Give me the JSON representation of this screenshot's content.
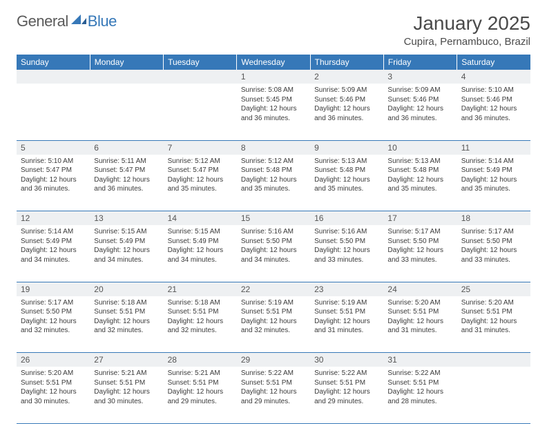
{
  "brand": {
    "part1": "General",
    "part2": "Blue"
  },
  "title": "January 2025",
  "location": "Cupira, Pernambuco, Brazil",
  "colors": {
    "accent": "#3678b8",
    "header_text": "#ffffff",
    "daynum_bg": "#eef0f2",
    "body_text": "#3a3a3a"
  },
  "typography": {
    "title_size": 28,
    "location_size": 15,
    "th_size": 12,
    "cell_size": 10
  },
  "days_of_week": [
    "Sunday",
    "Monday",
    "Tuesday",
    "Wednesday",
    "Thursday",
    "Friday",
    "Saturday"
  ],
  "weeks": [
    [
      null,
      null,
      null,
      {
        "n": "1",
        "sunrise": "Sunrise: 5:08 AM",
        "sunset": "Sunset: 5:45 PM",
        "daylight": "Daylight: 12 hours and 36 minutes."
      },
      {
        "n": "2",
        "sunrise": "Sunrise: 5:09 AM",
        "sunset": "Sunset: 5:46 PM",
        "daylight": "Daylight: 12 hours and 36 minutes."
      },
      {
        "n": "3",
        "sunrise": "Sunrise: 5:09 AM",
        "sunset": "Sunset: 5:46 PM",
        "daylight": "Daylight: 12 hours and 36 minutes."
      },
      {
        "n": "4",
        "sunrise": "Sunrise: 5:10 AM",
        "sunset": "Sunset: 5:46 PM",
        "daylight": "Daylight: 12 hours and 36 minutes."
      }
    ],
    [
      {
        "n": "5",
        "sunrise": "Sunrise: 5:10 AM",
        "sunset": "Sunset: 5:47 PM",
        "daylight": "Daylight: 12 hours and 36 minutes."
      },
      {
        "n": "6",
        "sunrise": "Sunrise: 5:11 AM",
        "sunset": "Sunset: 5:47 PM",
        "daylight": "Daylight: 12 hours and 36 minutes."
      },
      {
        "n": "7",
        "sunrise": "Sunrise: 5:12 AM",
        "sunset": "Sunset: 5:47 PM",
        "daylight": "Daylight: 12 hours and 35 minutes."
      },
      {
        "n": "8",
        "sunrise": "Sunrise: 5:12 AM",
        "sunset": "Sunset: 5:48 PM",
        "daylight": "Daylight: 12 hours and 35 minutes."
      },
      {
        "n": "9",
        "sunrise": "Sunrise: 5:13 AM",
        "sunset": "Sunset: 5:48 PM",
        "daylight": "Daylight: 12 hours and 35 minutes."
      },
      {
        "n": "10",
        "sunrise": "Sunrise: 5:13 AM",
        "sunset": "Sunset: 5:48 PM",
        "daylight": "Daylight: 12 hours and 35 minutes."
      },
      {
        "n": "11",
        "sunrise": "Sunrise: 5:14 AM",
        "sunset": "Sunset: 5:49 PM",
        "daylight": "Daylight: 12 hours and 35 minutes."
      }
    ],
    [
      {
        "n": "12",
        "sunrise": "Sunrise: 5:14 AM",
        "sunset": "Sunset: 5:49 PM",
        "daylight": "Daylight: 12 hours and 34 minutes."
      },
      {
        "n": "13",
        "sunrise": "Sunrise: 5:15 AM",
        "sunset": "Sunset: 5:49 PM",
        "daylight": "Daylight: 12 hours and 34 minutes."
      },
      {
        "n": "14",
        "sunrise": "Sunrise: 5:15 AM",
        "sunset": "Sunset: 5:49 PM",
        "daylight": "Daylight: 12 hours and 34 minutes."
      },
      {
        "n": "15",
        "sunrise": "Sunrise: 5:16 AM",
        "sunset": "Sunset: 5:50 PM",
        "daylight": "Daylight: 12 hours and 34 minutes."
      },
      {
        "n": "16",
        "sunrise": "Sunrise: 5:16 AM",
        "sunset": "Sunset: 5:50 PM",
        "daylight": "Daylight: 12 hours and 33 minutes."
      },
      {
        "n": "17",
        "sunrise": "Sunrise: 5:17 AM",
        "sunset": "Sunset: 5:50 PM",
        "daylight": "Daylight: 12 hours and 33 minutes."
      },
      {
        "n": "18",
        "sunrise": "Sunrise: 5:17 AM",
        "sunset": "Sunset: 5:50 PM",
        "daylight": "Daylight: 12 hours and 33 minutes."
      }
    ],
    [
      {
        "n": "19",
        "sunrise": "Sunrise: 5:17 AM",
        "sunset": "Sunset: 5:50 PM",
        "daylight": "Daylight: 12 hours and 32 minutes."
      },
      {
        "n": "20",
        "sunrise": "Sunrise: 5:18 AM",
        "sunset": "Sunset: 5:51 PM",
        "daylight": "Daylight: 12 hours and 32 minutes."
      },
      {
        "n": "21",
        "sunrise": "Sunrise: 5:18 AM",
        "sunset": "Sunset: 5:51 PM",
        "daylight": "Daylight: 12 hours and 32 minutes."
      },
      {
        "n": "22",
        "sunrise": "Sunrise: 5:19 AM",
        "sunset": "Sunset: 5:51 PM",
        "daylight": "Daylight: 12 hours and 32 minutes."
      },
      {
        "n": "23",
        "sunrise": "Sunrise: 5:19 AM",
        "sunset": "Sunset: 5:51 PM",
        "daylight": "Daylight: 12 hours and 31 minutes."
      },
      {
        "n": "24",
        "sunrise": "Sunrise: 5:20 AM",
        "sunset": "Sunset: 5:51 PM",
        "daylight": "Daylight: 12 hours and 31 minutes."
      },
      {
        "n": "25",
        "sunrise": "Sunrise: 5:20 AM",
        "sunset": "Sunset: 5:51 PM",
        "daylight": "Daylight: 12 hours and 31 minutes."
      }
    ],
    [
      {
        "n": "26",
        "sunrise": "Sunrise: 5:20 AM",
        "sunset": "Sunset: 5:51 PM",
        "daylight": "Daylight: 12 hours and 30 minutes."
      },
      {
        "n": "27",
        "sunrise": "Sunrise: 5:21 AM",
        "sunset": "Sunset: 5:51 PM",
        "daylight": "Daylight: 12 hours and 30 minutes."
      },
      {
        "n": "28",
        "sunrise": "Sunrise: 5:21 AM",
        "sunset": "Sunset: 5:51 PM",
        "daylight": "Daylight: 12 hours and 29 minutes."
      },
      {
        "n": "29",
        "sunrise": "Sunrise: 5:22 AM",
        "sunset": "Sunset: 5:51 PM",
        "daylight": "Daylight: 12 hours and 29 minutes."
      },
      {
        "n": "30",
        "sunrise": "Sunrise: 5:22 AM",
        "sunset": "Sunset: 5:51 PM",
        "daylight": "Daylight: 12 hours and 29 minutes."
      },
      {
        "n": "31",
        "sunrise": "Sunrise: 5:22 AM",
        "sunset": "Sunset: 5:51 PM",
        "daylight": "Daylight: 12 hours and 28 minutes."
      },
      null
    ]
  ]
}
